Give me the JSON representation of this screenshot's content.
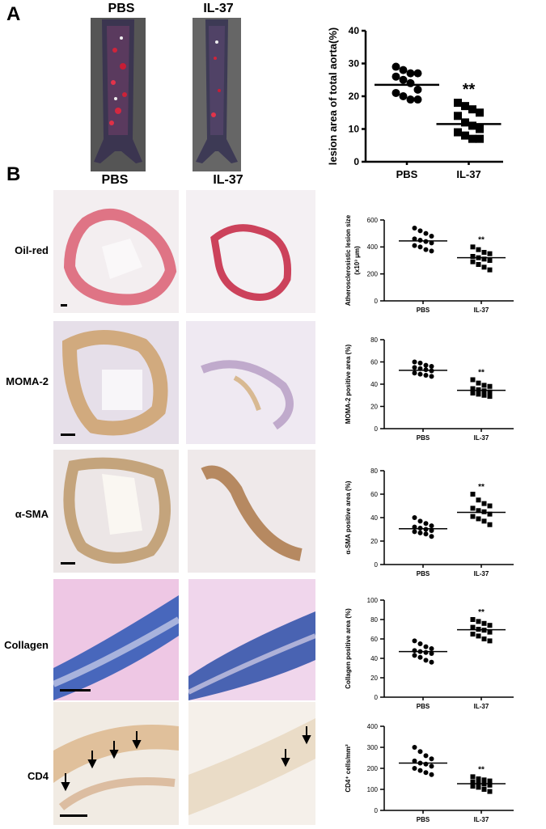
{
  "panel_a": {
    "letter": "A",
    "col_labels": [
      "PBS",
      "IL-37"
    ]
  },
  "panel_b": {
    "letter": "B",
    "col_labels": [
      "PBS",
      "IL-37"
    ],
    "row_labels": [
      "Oil-red",
      "MOMA-2",
      "α-SMA",
      "Collagen",
      "CD4"
    ]
  },
  "significance": "**",
  "chart_data": [
    {
      "type": "scatter",
      "title": "",
      "xlabel": "",
      "ylabel": "lesion area of total aorta(%)",
      "categories": [
        "PBS",
        "IL-37"
      ],
      "ylim": [
        0,
        40
      ],
      "yticks": [
        0,
        10,
        20,
        30,
        40
      ],
      "series": [
        {
          "values": [
            29,
            28,
            27,
            27,
            26,
            25,
            24,
            22,
            21,
            20,
            19,
            19
          ],
          "mean": 23.5,
          "marker": "circle"
        },
        {
          "values": [
            18,
            17,
            16,
            15,
            14,
            12,
            11,
            10,
            9,
            8,
            7,
            7
          ],
          "mean": 11.5,
          "marker": "square"
        }
      ],
      "annotations": [
        {
          "category": "IL-37",
          "text": "**"
        }
      ]
    },
    {
      "type": "scatter",
      "title": "",
      "xlabel": "",
      "ylabel": "Atherosclerosistic lesion size",
      "ylabel2": "(x10³ μm)",
      "categories": [
        "PBS",
        "IL-37"
      ],
      "ylim": [
        0,
        600
      ],
      "yticks": [
        0,
        200,
        400,
        600
      ],
      "series": [
        {
          "values": [
            540,
            520,
            500,
            480,
            460,
            450,
            440,
            430,
            410,
            400,
            380,
            370
          ],
          "mean": 445,
          "marker": "circle"
        },
        {
          "values": [
            400,
            380,
            360,
            350,
            330,
            320,
            310,
            300,
            290,
            270,
            250,
            230
          ],
          "mean": 320,
          "marker": "square"
        }
      ],
      "annotations": [
        {
          "category": "IL-37",
          "text": "**"
        }
      ]
    },
    {
      "type": "scatter",
      "title": "",
      "xlabel": "",
      "ylabel": "MOMA-2 positive area (%)",
      "categories": [
        "PBS",
        "IL-37"
      ],
      "ylim": [
        0,
        80
      ],
      "yticks": [
        0,
        20,
        40,
        60,
        80
      ],
      "series": [
        {
          "values": [
            60,
            59,
            57,
            56,
            55,
            54,
            53,
            52,
            50,
            49,
            48,
            47
          ],
          "mean": 52.5,
          "marker": "circle"
        },
        {
          "values": [
            44,
            41,
            39,
            38,
            36,
            35,
            34,
            33,
            32,
            31,
            30,
            29
          ],
          "mean": 34.5,
          "marker": "square"
        }
      ],
      "annotations": [
        {
          "category": "IL-37",
          "text": "**"
        }
      ]
    },
    {
      "type": "scatter",
      "title": "",
      "xlabel": "",
      "ylabel": "α-SMA positive area (%)",
      "categories": [
        "PBS",
        "IL-37"
      ],
      "ylim": [
        0,
        80
      ],
      "yticks": [
        0,
        20,
        40,
        60,
        80
      ],
      "series": [
        {
          "values": [
            40,
            37,
            35,
            33,
            32,
            31,
            30,
            29,
            28,
            27,
            26,
            24
          ],
          "mean": 30.5,
          "marker": "circle"
        },
        {
          "values": [
            60,
            55,
            52,
            50,
            48,
            46,
            45,
            43,
            41,
            39,
            37,
            34
          ],
          "mean": 44.5,
          "marker": "square"
        }
      ],
      "annotations": [
        {
          "category": "IL-37",
          "text": "**"
        }
      ]
    },
    {
      "type": "scatter",
      "title": "",
      "xlabel": "",
      "ylabel": "Collagen positive area (%)",
      "categories": [
        "PBS",
        "IL-37"
      ],
      "ylim": [
        0,
        100
      ],
      "yticks": [
        0,
        20,
        40,
        60,
        80,
        100
      ],
      "series": [
        {
          "values": [
            58,
            55,
            52,
            50,
            48,
            47,
            46,
            45,
            43,
            41,
            38,
            36
          ],
          "mean": 47,
          "marker": "circle"
        },
        {
          "values": [
            80,
            78,
            76,
            74,
            72,
            70,
            69,
            67,
            65,
            63,
            60,
            58
          ],
          "mean": 69.5,
          "marker": "square"
        }
      ],
      "annotations": [
        {
          "category": "IL-37",
          "text": "**"
        }
      ]
    },
    {
      "type": "scatter",
      "title": "",
      "xlabel": "",
      "ylabel": "CD4⁺ cells/mm²",
      "categories": [
        "PBS",
        "IL-37"
      ],
      "ylim": [
        0,
        400
      ],
      "yticks": [
        0,
        100,
        200,
        300,
        400
      ],
      "series": [
        {
          "values": [
            300,
            280,
            260,
            245,
            235,
            225,
            220,
            210,
            200,
            190,
            180,
            170
          ],
          "mean": 225,
          "marker": "circle"
        },
        {
          "values": [
            160,
            150,
            145,
            140,
            135,
            130,
            125,
            120,
            115,
            110,
            100,
            90
          ],
          "mean": 127,
          "marker": "square"
        }
      ],
      "annotations": [
        {
          "category": "IL-37",
          "text": "**"
        }
      ]
    }
  ]
}
